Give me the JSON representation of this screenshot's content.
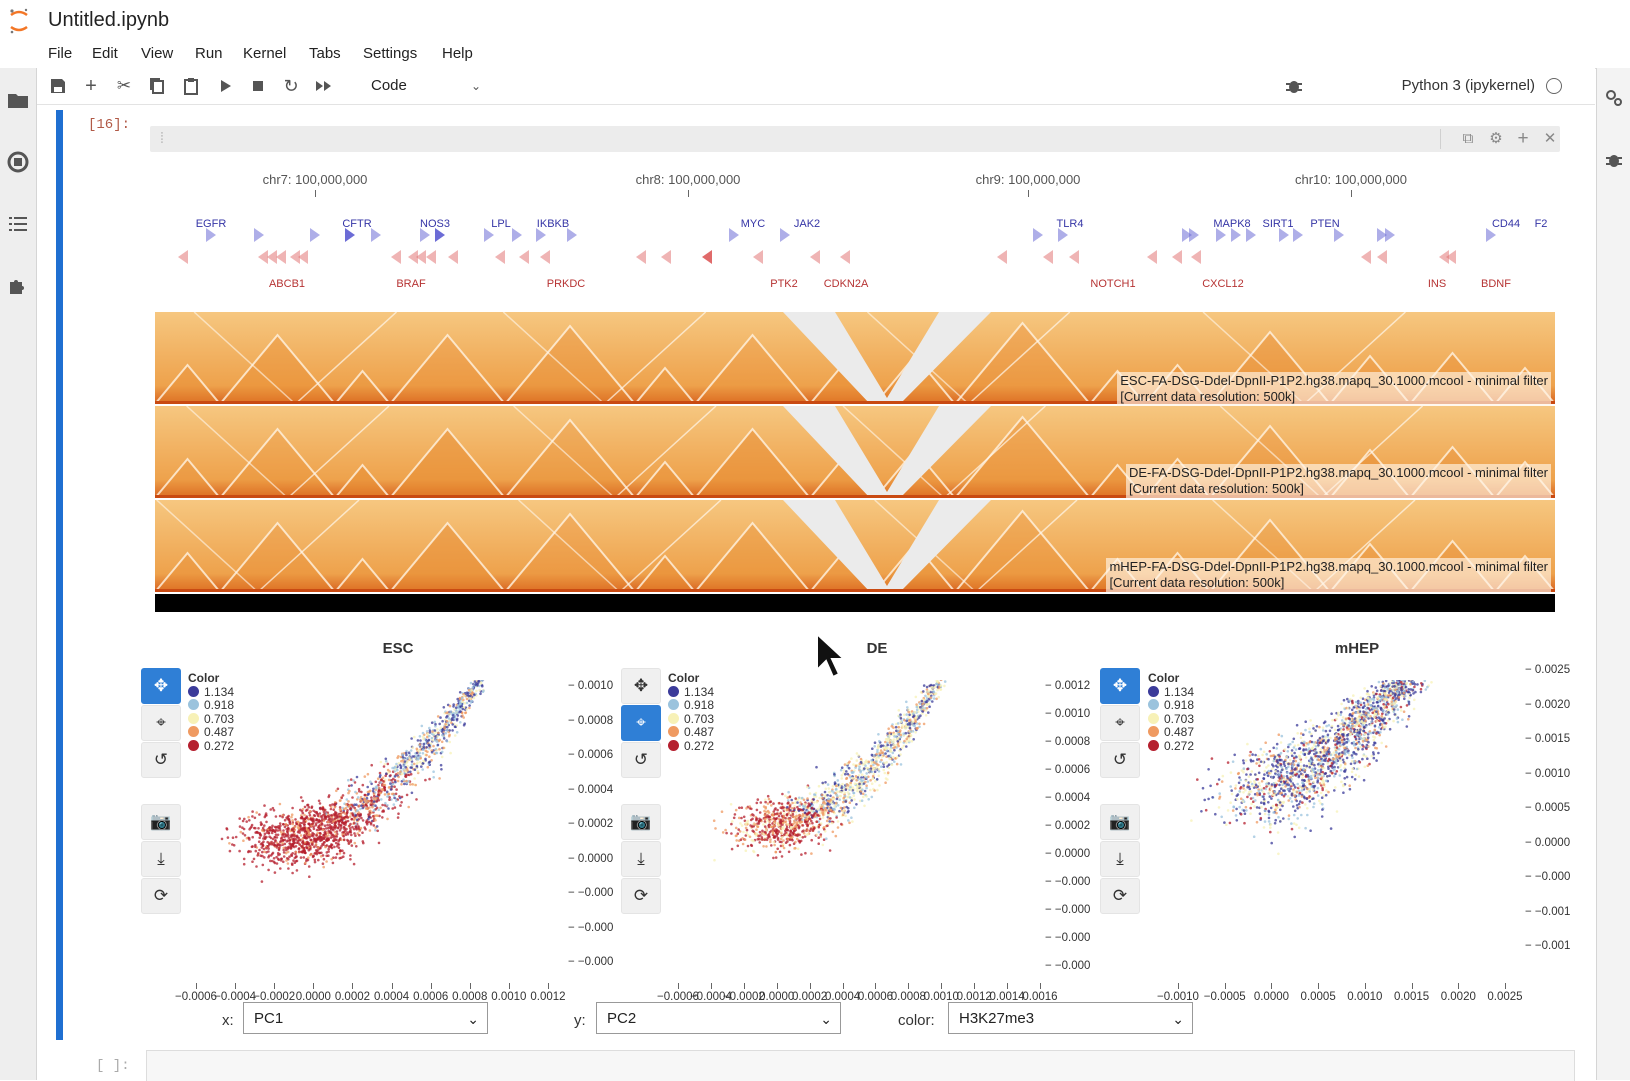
{
  "app": {
    "title": "Untitled.ipynb",
    "menu": [
      "File",
      "Edit",
      "View",
      "Run",
      "Kernel",
      "Tabs",
      "Settings",
      "Help"
    ]
  },
  "sidebar": {
    "icons": [
      "folder-icon",
      "running-icon",
      "toc-icon",
      "extension-icon"
    ]
  },
  "rightbar": {
    "icons": [
      "property-inspector-icon",
      "debugger-icon"
    ]
  },
  "toolbar": {
    "buttons": [
      "save-icon",
      "add-cell-icon",
      "cut-icon",
      "copy-icon",
      "paste-icon",
      "run-icon",
      "stop-icon",
      "restart-icon",
      "fast-forward-icon"
    ],
    "cell_type": "Code",
    "kernel_name": "Python 3 (ipykernel)"
  },
  "cell": {
    "prompt": "[16]:",
    "next_prompt": "[ ]:"
  },
  "genome": {
    "chromosomes": [
      {
        "label": "chr7: 100,000,000"
      },
      {
        "label": "chr8: 100,000,000"
      },
      {
        "label": "chr9: 100,000,000"
      },
      {
        "label": "chr10: 100,000,000"
      }
    ],
    "genes_top": [
      "EGFR",
      "CFTR",
      "NOS3",
      "LPL",
      "IKBKB",
      "MYC",
      "JAK2",
      "TLR4",
      "MAPK8",
      "SIRT1",
      "PTEN",
      "CD44",
      "F2"
    ],
    "genes_bottom": [
      "ABCB1",
      "BRAF",
      "PRKDC",
      "PTK2",
      "CDKN2A",
      "NOTCH1",
      "CXCL12",
      "INS",
      "BDNF"
    ],
    "colors": {
      "plus_strand": "#6c6cd6",
      "minus_strand": "#e06a6a"
    }
  },
  "heatmaps": [
    {
      "name": "ESC-FA-DSG-Ddel-DpnII-P1P2.hg38.mapq_30.1000.mcool - minimal filter",
      "resolution": "[Current data resolution: 500k]"
    },
    {
      "name": "DE-FA-DSG-Ddel-DpnII-P1P2.hg38.mapq_30.1000.mcool - minimal filter",
      "resolution": "[Current data resolution: 500k]"
    },
    {
      "name": "mHEP-FA-DSG-Ddel-DpnII-P1P2.hg38.mapq_30.1000.mcool - minimal filter",
      "resolution": "[Current data resolution: 500k]"
    }
  ],
  "scatter": {
    "legend_title": "Color",
    "legend_values": [
      "1.134",
      "0.918",
      "0.703",
      "0.487",
      "0.272"
    ],
    "legend_colors": [
      "#3b3b9a",
      "#9bc3dd",
      "#f7f1b7",
      "#ef9a61",
      "#b51f2e"
    ],
    "panels": [
      {
        "title": "ESC",
        "x_ticks": [
          "−0.0006",
          "−0.0004",
          "−0.0002",
          "0.0000",
          "0.0002",
          "0.0004",
          "0.0006",
          "0.0008",
          "0.0010",
          "0.0012"
        ],
        "y_ticks": []
      },
      {
        "title": "DE",
        "x_ticks": [
          "−0.0006",
          "−0.0004",
          "−0.0002",
          "0.0000",
          "0.0002",
          "0.0004",
          "0.0006",
          "0.0008",
          "0.0010",
          "0.0012",
          "0.0014",
          "0.0016"
        ],
        "y_ticks": [
          "− 0.0010",
          "− 0.0008",
          "− 0.0006",
          "− 0.0004",
          "− 0.0002",
          "− 0.0000",
          "− −0.000",
          "− −0.000",
          "− −0.000"
        ]
      },
      {
        "title": "mHEP",
        "x_ticks": [
          "−0.0010",
          "−0.0005",
          "0.0000",
          "0.0005",
          "0.0010",
          "0.0015",
          "0.0020",
          "0.0025"
        ],
        "y_ticks": [
          "− 0.0012",
          "− 0.0010",
          "− 0.0008",
          "− 0.0006",
          "− 0.0004",
          "− 0.0002",
          "− 0.0000",
          "− −0.000",
          "− −0.000",
          "− −0.000",
          "− −0.000"
        ]
      }
    ],
    "right_y_ticks": [
      "− 0.0025",
      "− 0.0020",
      "− 0.0015",
      "− 0.0010",
      "− 0.0005",
      "− 0.0000",
      "− −0.000",
      "− −0.001",
      "− −0.001"
    ]
  },
  "widgets": {
    "x": {
      "label": "x:",
      "value": "PC1"
    },
    "y": {
      "label": "y:",
      "value": "PC2"
    },
    "color": {
      "label": "color:",
      "value": "H3K27me3"
    }
  }
}
